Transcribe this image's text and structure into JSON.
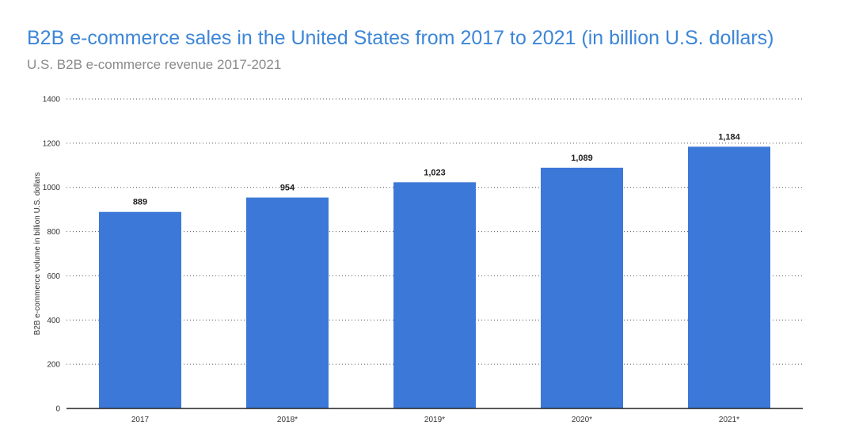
{
  "chart_data": {
    "type": "bar",
    "title": "B2B e-commerce sales in the United States from 2017 to 2021 (in billion U.S. dollars)",
    "subtitle": "U.S. B2B e-commerce revenue 2017-2021",
    "ylabel": "B2B e-commerce volume in billion U.S. dollars",
    "xlabel": "",
    "categories": [
      "2017",
      "2018*",
      "2019*",
      "2020*",
      "2021*"
    ],
    "values": [
      889,
      954,
      1023,
      1089,
      1184
    ],
    "value_labels": [
      "889",
      "954",
      "1,023",
      "1,089",
      "1,184"
    ],
    "ylim": [
      0,
      1400
    ],
    "yticks": [
      0,
      200,
      400,
      600,
      800,
      1000,
      1200,
      1400
    ],
    "grid": true,
    "bar_color": "#3c78d8"
  }
}
